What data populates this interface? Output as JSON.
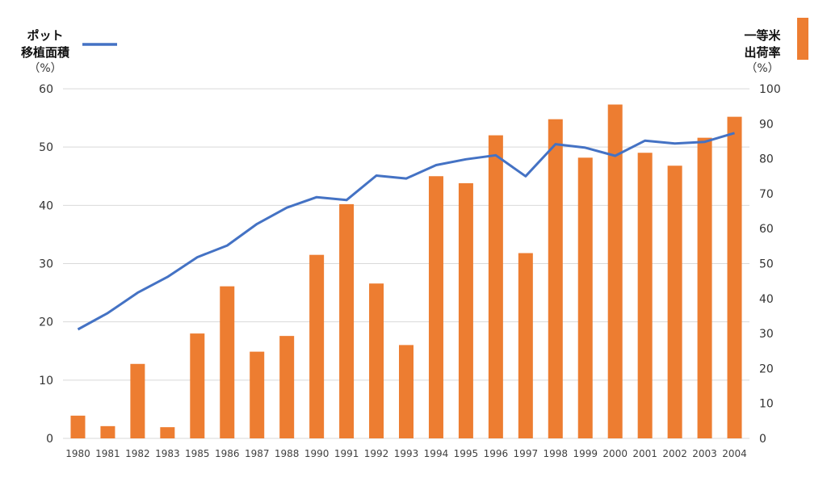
{
  "chart_data": {
    "type": "bar+line",
    "categories": [
      "1980",
      "1981",
      "1982",
      "1983",
      "1985",
      "1986",
      "1987",
      "1988",
      "1990",
      "1991",
      "1992",
      "1993",
      "1994",
      "1995",
      "1996",
      "1997",
      "1998",
      "1999",
      "2000",
      "2001",
      "2002",
      "2003",
      "2004"
    ],
    "series": [
      {
        "name": "一等米出荷率",
        "type": "bar",
        "axis": "right",
        "color": "#ED7D31",
        "values": [
          6.5,
          3.5,
          21.3,
          3.2,
          30.0,
          43.5,
          24.8,
          29.3,
          52.5,
          67.0,
          44.3,
          26.7,
          75.0,
          73.0,
          86.7,
          53.0,
          91.3,
          80.3,
          95.5,
          81.7,
          78.0,
          86.0,
          92.0
        ]
      },
      {
        "name": "ポット移植面積",
        "type": "line",
        "axis": "left",
        "color": "#4472C4",
        "values": [
          18.7,
          21.5,
          25.0,
          27.7,
          31.1,
          33.1,
          36.8,
          39.6,
          41.4,
          40.9,
          45.1,
          44.6,
          46.9,
          47.9,
          48.6,
          45.0,
          50.5,
          49.9,
          48.5,
          51.1,
          50.6,
          50.9,
          52.4
        ]
      }
    ],
    "y_left": {
      "title_lines": [
        "ポット",
        "移植面積"
      ],
      "unit": "（%）",
      "ylim": [
        0,
        60
      ],
      "ticks": [
        "0",
        "10",
        "20",
        "30",
        "40",
        "50",
        "60"
      ]
    },
    "y_right": {
      "title_lines": [
        "一等米",
        "出荷率"
      ],
      "unit": "（%）",
      "ylim": [
        0,
        100
      ],
      "ticks": [
        "0",
        "10",
        "20",
        "30",
        "40",
        "50",
        "60",
        "70",
        "80",
        "90",
        "100"
      ]
    },
    "grid": true,
    "legend": "top-left line, top-right bar"
  }
}
